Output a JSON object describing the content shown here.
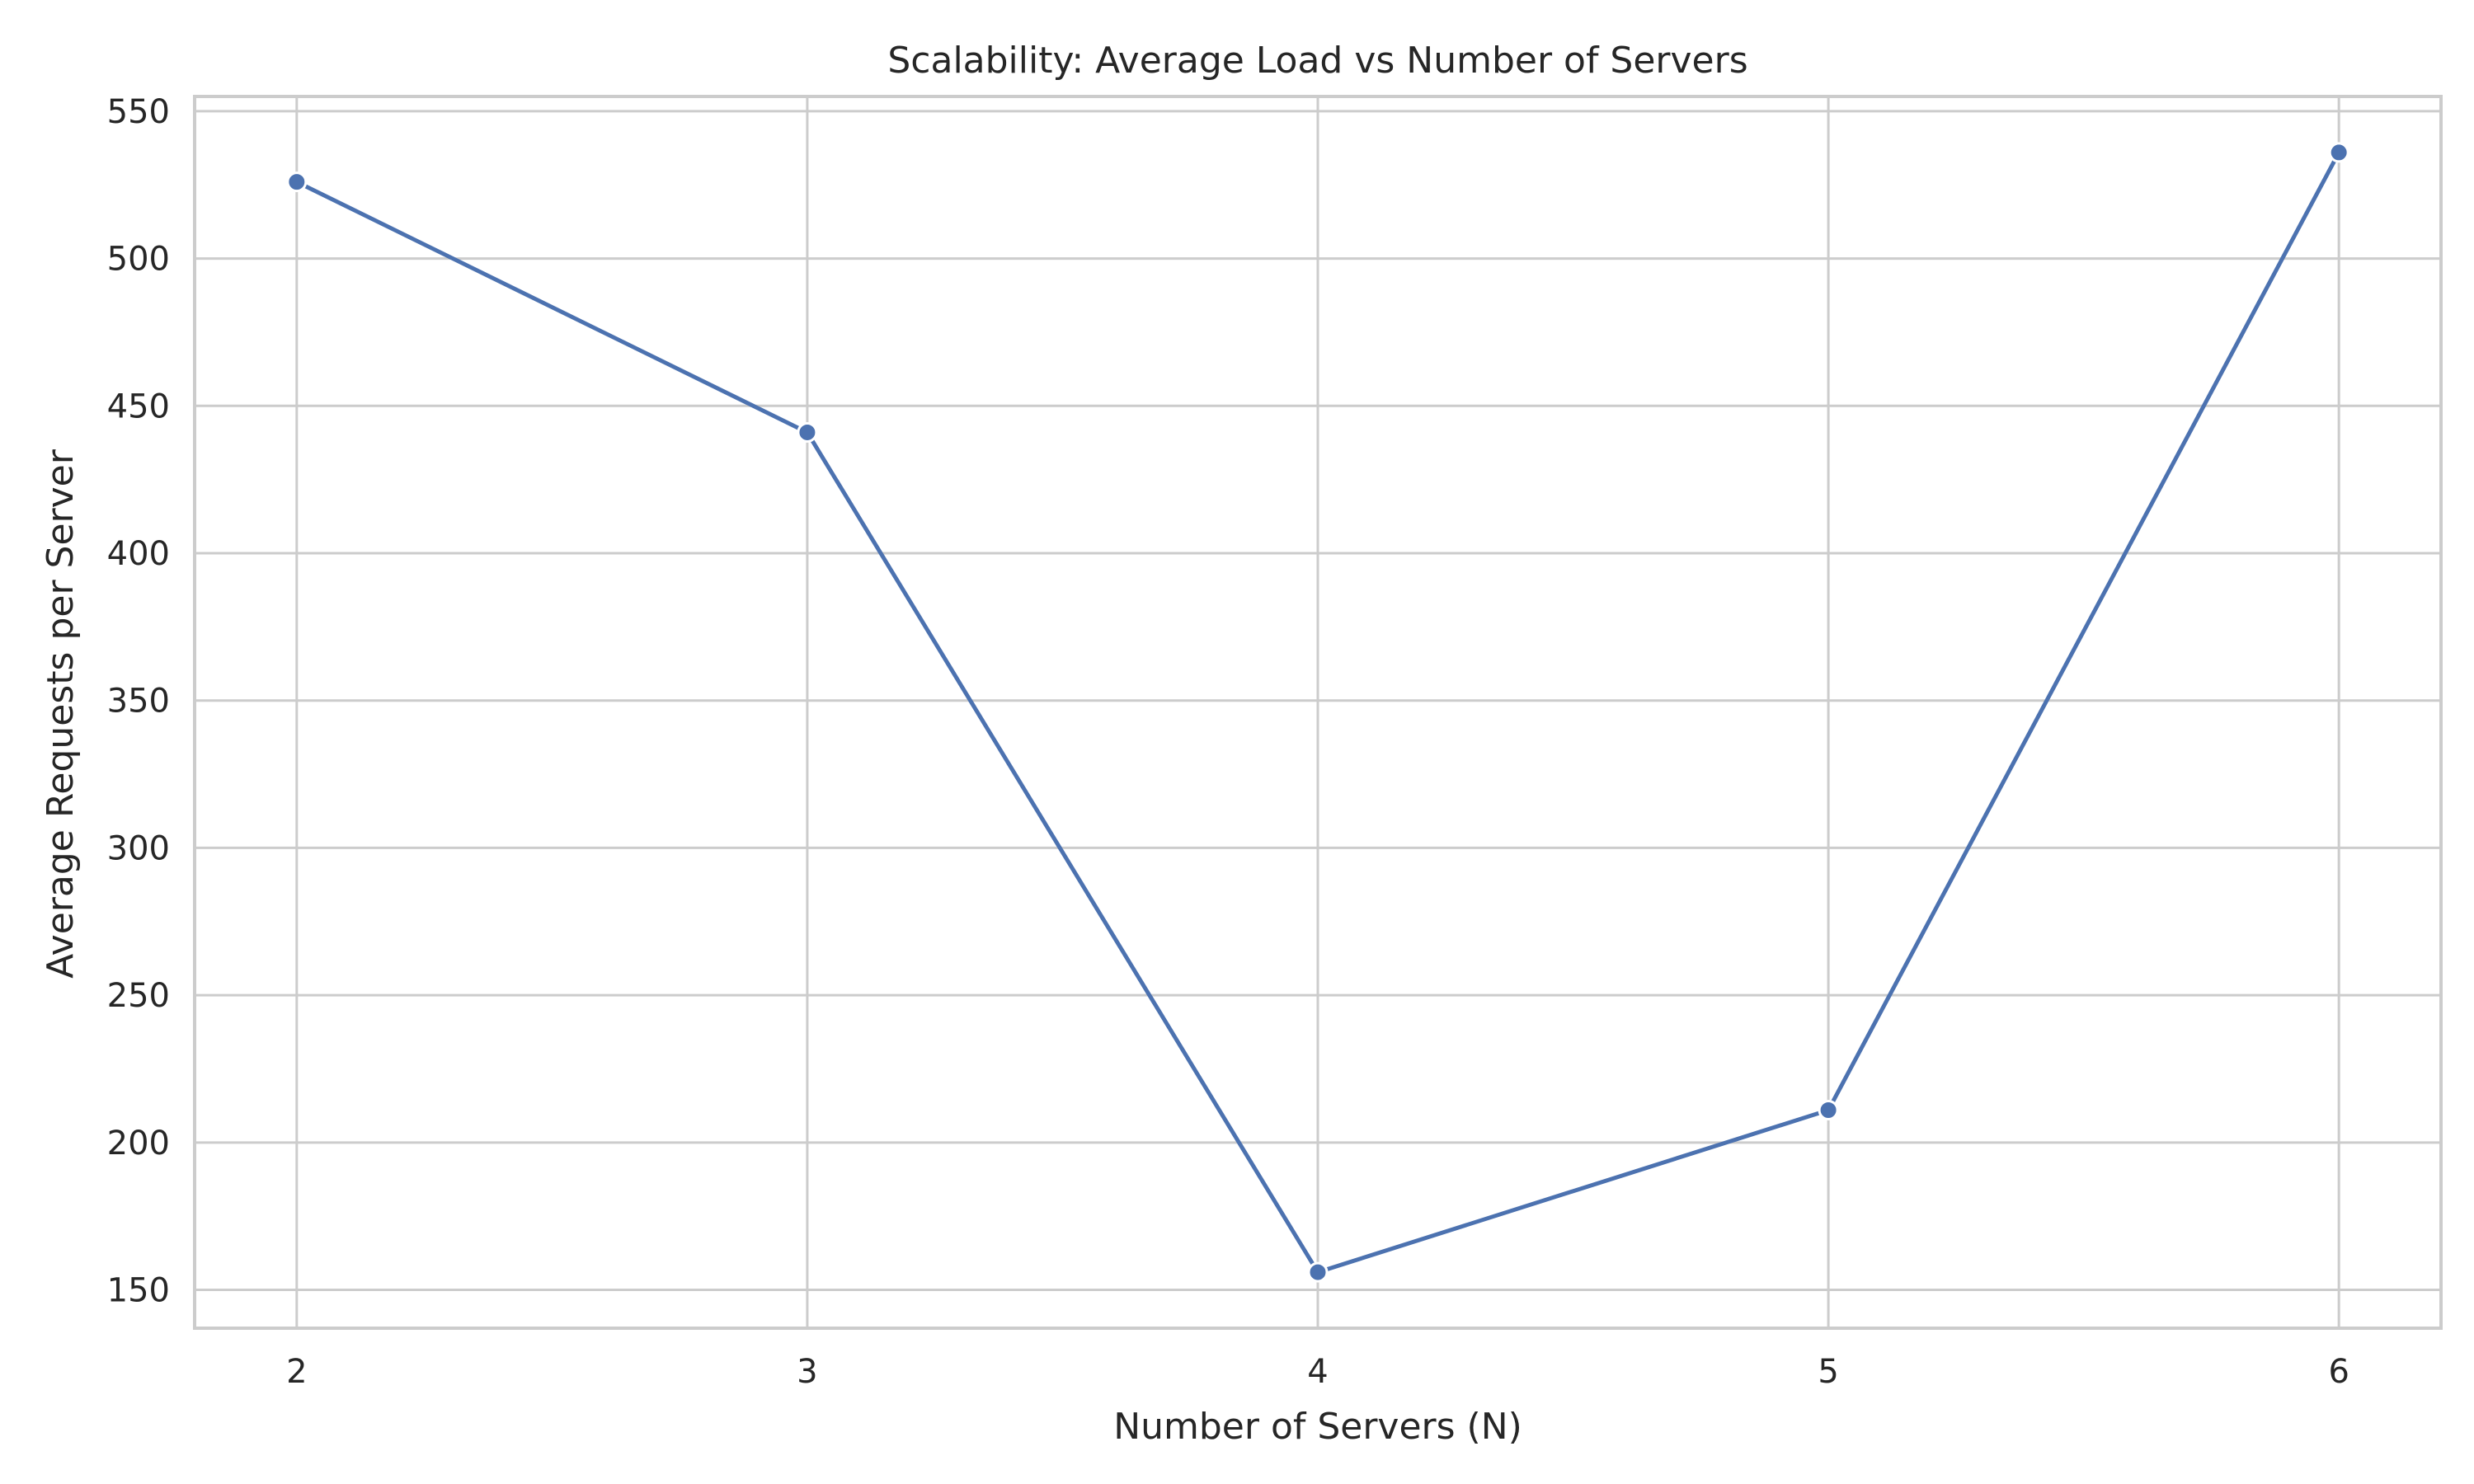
{
  "chart_data": {
    "type": "line",
    "title": "Scalability: Average Load vs Number of Servers",
    "xlabel": "Number of Servers (N)",
    "ylabel": "Average Requests per Server",
    "x": [
      2,
      3,
      4,
      5,
      6
    ],
    "x_tick_labels": [
      "2",
      "3",
      "4",
      "5",
      "6"
    ],
    "y_ticks": [
      150,
      200,
      250,
      300,
      350,
      400,
      450,
      500,
      550
    ],
    "y_tick_labels": [
      "150",
      "200",
      "250",
      "300",
      "350",
      "400",
      "450",
      "500",
      "550"
    ],
    "xlim": [
      1.8,
      6.2
    ],
    "ylim": [
      137,
      555
    ],
    "series": [
      {
        "values": [
          526,
          441,
          156,
          211,
          536
        ],
        "color": "#4c72b0",
        "marker": "circle"
      }
    ],
    "grid": true,
    "legend": "none"
  }
}
